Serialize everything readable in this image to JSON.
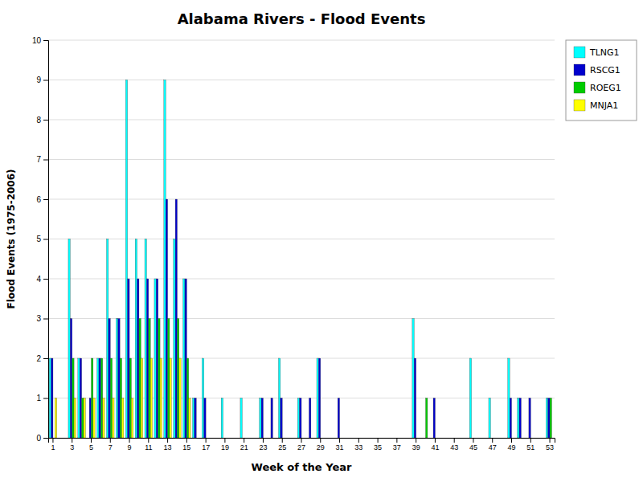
{
  "chart_data": {
    "type": "bar",
    "title": "Alabama Rivers - Flood Events",
    "xlabel": "Week of the Year",
    "ylabel": "Flood Events (1975-2006)",
    "categories": [
      "1",
      null,
      "3",
      null,
      "5",
      null,
      "7",
      null,
      "9",
      null,
      "11",
      null,
      "13",
      null,
      "15",
      null,
      "17",
      null,
      "19",
      null,
      "21",
      null,
      "23",
      null,
      "25",
      null,
      "27",
      null,
      "29",
      null,
      "31",
      null,
      "33",
      null,
      "35",
      null,
      "37",
      null,
      "39",
      null,
      "41",
      null,
      "43",
      null,
      "45",
      null,
      "47",
      null,
      "49",
      null,
      "51",
      null,
      "53"
    ],
    "series": [
      {
        "name": "TLNG1",
        "color": "#00FFFF",
        "values": [
          2,
          0,
          5,
          2,
          0,
          2,
          5,
          3,
          9,
          5,
          5,
          4,
          9,
          5,
          4,
          1,
          2,
          0,
          1,
          0,
          1,
          0,
          1,
          0,
          2,
          0,
          1,
          0,
          2,
          0,
          0,
          0,
          0,
          0,
          0,
          0,
          0,
          0,
          3,
          0,
          0,
          0,
          0,
          0,
          2,
          0,
          1,
          0,
          2,
          1,
          0,
          0,
          1
        ]
      },
      {
        "name": "RSCG1",
        "color": "#0000CD",
        "values": [
          2,
          0,
          3,
          2,
          1,
          2,
          3,
          3,
          4,
          4,
          4,
          4,
          6,
          6,
          4,
          1,
          1,
          0,
          0,
          0,
          0,
          0,
          1,
          1,
          1,
          0,
          1,
          1,
          2,
          0,
          1,
          0,
          0,
          0,
          0,
          0,
          0,
          0,
          2,
          0,
          1,
          0,
          0,
          0,
          0,
          0,
          0,
          0,
          1,
          1,
          1,
          0,
          1
        ]
      },
      {
        "name": "ROEG1",
        "color": "#00CC00",
        "values": [
          0,
          0,
          2,
          1,
          2,
          2,
          2,
          2,
          2,
          3,
          3,
          3,
          3,
          3,
          2,
          0,
          0,
          0,
          0,
          0,
          0,
          0,
          0,
          0,
          0,
          0,
          0,
          0,
          0,
          0,
          0,
          0,
          0,
          0,
          0,
          0,
          0,
          0,
          0,
          1,
          0,
          0,
          0,
          0,
          0,
          0,
          0,
          0,
          0,
          0,
          0,
          0,
          1
        ]
      },
      {
        "name": "MNJA1",
        "color": "#FFFF00",
        "values": [
          1,
          0,
          1,
          1,
          1,
          1,
          1,
          1,
          1,
          2,
          2,
          2,
          2,
          2,
          1,
          0,
          0,
          0,
          0,
          0,
          0,
          0,
          0,
          0,
          0,
          0,
          0,
          0,
          0,
          0,
          0,
          0,
          0,
          0,
          0,
          0,
          0,
          0,
          0,
          0,
          0,
          0,
          0,
          0,
          0,
          0,
          0,
          0,
          0,
          0,
          0,
          0,
          0
        ]
      }
    ],
    "ylim": [
      0,
      10
    ],
    "yticks": [
      0,
      1,
      2,
      3,
      4,
      5,
      6,
      7,
      8,
      9,
      10
    ],
    "grid": true,
    "legend": "upper right"
  }
}
